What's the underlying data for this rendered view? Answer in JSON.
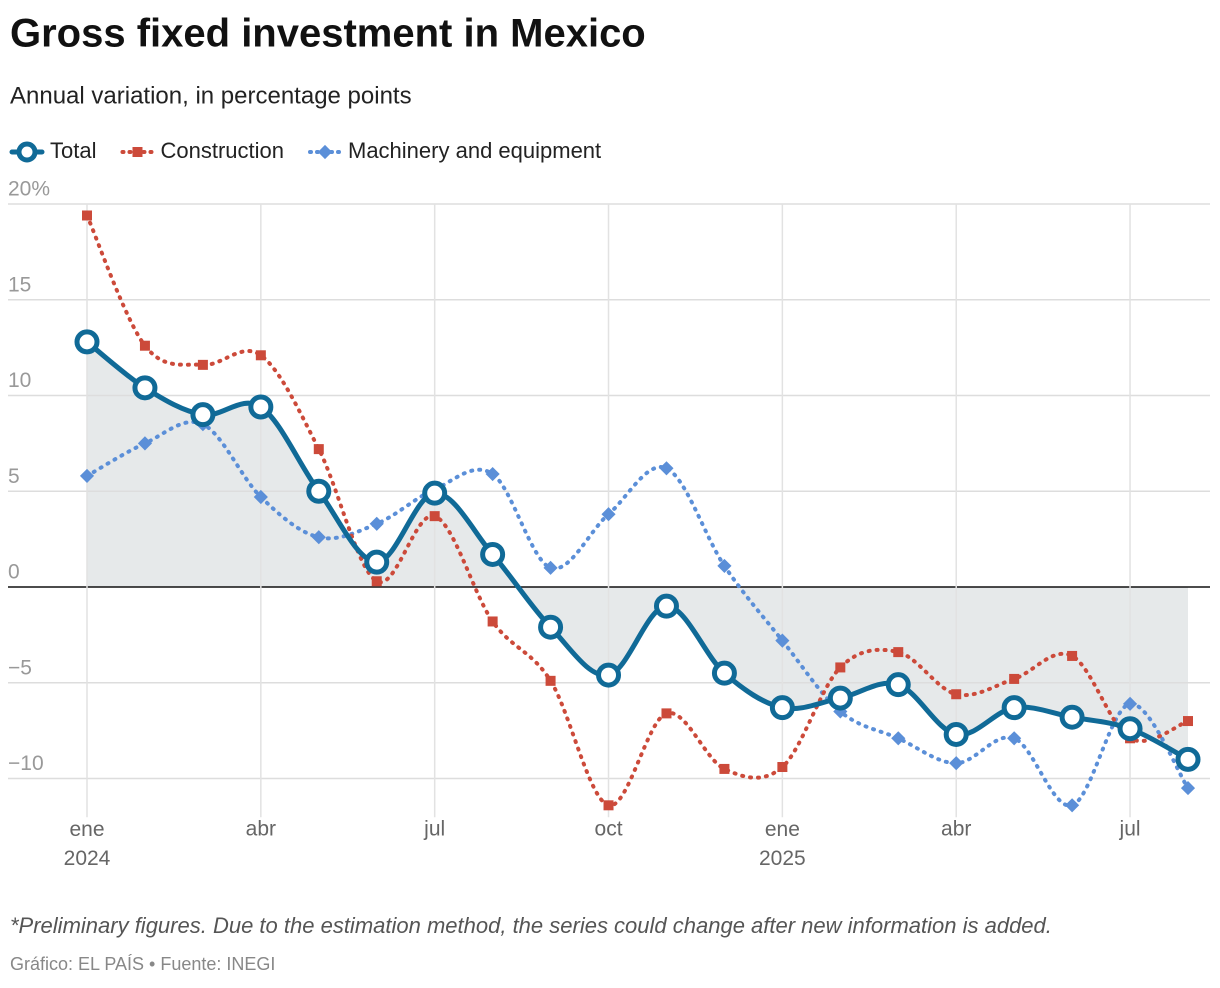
{
  "chart_data": {
    "type": "line",
    "title": "Gross fixed investment in Mexico",
    "subtitle": "Annual variation, in percentage points",
    "categories": [
      "ene 2024",
      null,
      null,
      "abr",
      null,
      null,
      "jul",
      null,
      null,
      "oct",
      null,
      null,
      "ene 2025",
      null,
      null,
      "abr",
      null,
      null,
      "jul",
      null
    ],
    "series": [
      {
        "name": "Total",
        "color": "#106a97",
        "values": [
          12.8,
          10.4,
          9.0,
          9.4,
          5.0,
          1.3,
          4.9,
          1.7,
          -2.1,
          -4.6,
          -1.0,
          -4.5,
          -6.3,
          -5.8,
          -5.1,
          -7.7,
          -6.3,
          -6.8,
          -7.4,
          -9.0
        ]
      },
      {
        "name": "Construction",
        "color": "#cc4a3a",
        "values": [
          19.4,
          12.6,
          11.6,
          12.1,
          7.2,
          0.3,
          3.7,
          -1.8,
          -4.9,
          -11.4,
          -6.6,
          -9.5,
          -9.4,
          -4.2,
          -3.4,
          -5.6,
          -4.8,
          -3.6,
          -7.9,
          -7.0
        ]
      },
      {
        "name": "Machinery and equipment",
        "color": "#5b8fd8",
        "values": [
          5.8,
          7.5,
          8.5,
          4.7,
          2.6,
          3.3,
          5.1,
          5.9,
          1.0,
          3.8,
          6.2,
          1.1,
          -2.8,
          -6.5,
          -7.9,
          -9.2,
          -7.9,
          -11.4,
          -6.1,
          -10.5
        ]
      }
    ],
    "ylim": [
      -11.5,
      20
    ],
    "yticks": [
      {
        "value": -10,
        "label": "−10"
      },
      {
        "value": -5,
        "label": "−5"
      },
      0,
      5,
      10,
      15,
      {
        "value": 20,
        "label": "20%"
      }
    ],
    "grid": true,
    "area_color": "#e6e9ea",
    "footnote": "*Preliminary figures. Due to the estimation method, the series could change after new information is added.",
    "source": "Gráfico: EL PAÍS • Fuente: INEGI"
  }
}
